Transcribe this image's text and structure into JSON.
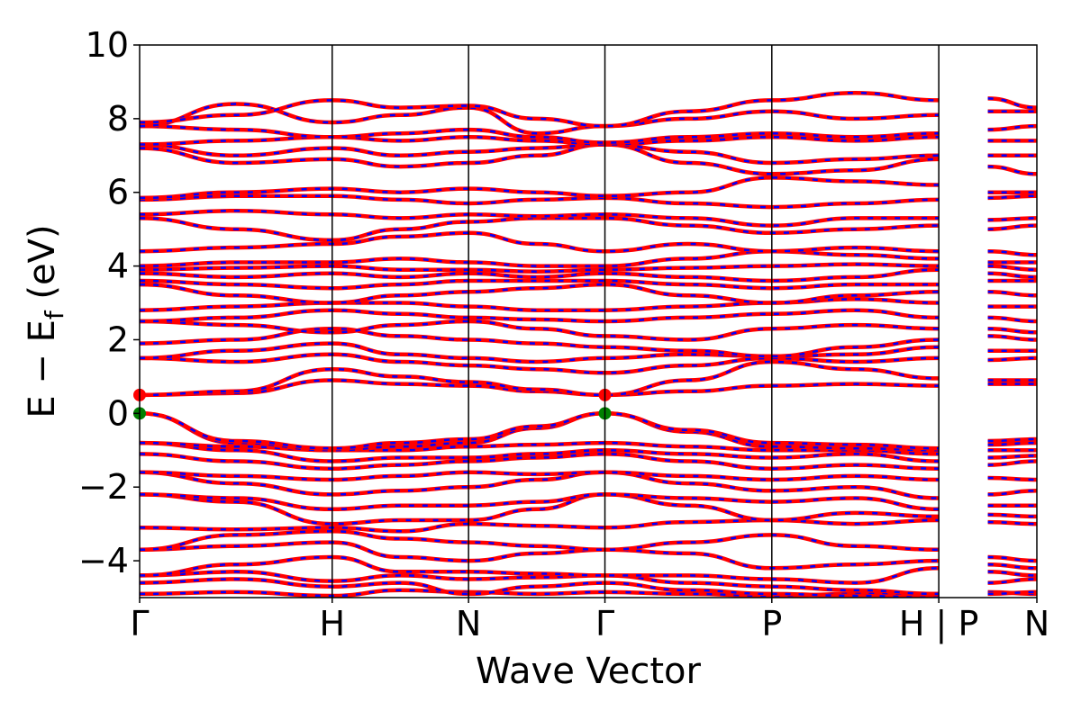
{
  "chart_data": {
    "type": "line",
    "title": "",
    "xlabel": "Wave Vector",
    "ylabel": {
      "main": "E − E",
      "sub": "f",
      "unit": " (eV)"
    },
    "ylim": [
      -5,
      10
    ],
    "yticks": [
      -4,
      -2,
      0,
      2,
      4,
      6,
      8,
      10
    ],
    "ytick_labels": [
      "−4",
      "−2",
      "0",
      "2",
      "4",
      "6",
      "8",
      "10"
    ],
    "xlim": [
      0,
      1
    ],
    "kpoints": [
      {
        "label": "Γ",
        "x": 0.0
      },
      {
        "label": "H",
        "x": 0.2146
      },
      {
        "label": "N",
        "x": 0.3666
      },
      {
        "label": "Γ",
        "x": 0.5186
      },
      {
        "label": "P",
        "x": 0.7046
      },
      {
        "label": "H | P",
        "x": 0.8907
      },
      {
        "label": "N",
        "x": 1.0
      }
    ],
    "segment_break_at": 0.8907,
    "grid": false,
    "series_style": {
      "spin_up_color": "#ff0000",
      "spin_down_color": "#0000ff",
      "marker_vbm_color": "#008000",
      "marker_cbm_color": "#ff0000"
    },
    "markers": [
      {
        "name": "VBM",
        "points": [
          [
            0.0,
            0.0
          ],
          [
            0.5186,
            0.0
          ]
        ]
      },
      {
        "name": "CBM",
        "points": [
          [
            0.0,
            0.5
          ],
          [
            0.5186,
            0.5
          ]
        ]
      }
    ],
    "bands_x": [
      0.0,
      0.1073,
      0.2146,
      0.2906,
      0.3666,
      0.4426,
      0.5186,
      0.6116,
      0.7046,
      0.7977,
      0.8907,
      0.9454,
      1.0
    ],
    "bands": [
      [
        -4.9,
        -4.85,
        -4.95,
        -4.8,
        -4.85,
        -4.9,
        -4.85,
        -4.9,
        -4.95,
        -4.9,
        -4.9,
        -4.85,
        -4.9
      ],
      [
        -4.6,
        -4.5,
        -4.7,
        -4.6,
        -4.9,
        -4.7,
        -4.6,
        -4.8,
        -4.9,
        -4.95,
        -5.0,
        -4.9,
        -4.85
      ],
      [
        -4.4,
        -4.3,
        -4.55,
        -4.4,
        -4.5,
        -4.45,
        -4.4,
        -4.6,
        -4.7,
        -4.8,
        -4.9,
        -4.6,
        -4.5
      ],
      [
        -4.4,
        -4.1,
        -3.9,
        -4.3,
        -4.3,
        -4.35,
        -4.4,
        -4.4,
        -4.5,
        -4.6,
        -4.2,
        -4.3,
        -4.4
      ],
      [
        -3.7,
        -3.6,
        -3.5,
        -3.9,
        -4.0,
        -3.8,
        -3.7,
        -3.8,
        -4.2,
        -4.1,
        -4.0,
        -4.1,
        -4.2
      ],
      [
        -3.7,
        -3.3,
        -3.2,
        -3.4,
        -3.5,
        -3.6,
        -3.7,
        -3.5,
        -3.3,
        -3.6,
        -3.7,
        -3.9,
        -4.0
      ],
      [
        -3.1,
        -3.15,
        -3.1,
        -3.2,
        -3.0,
        -3.05,
        -3.1,
        -2.95,
        -2.9,
        -3.0,
        -2.9,
        -2.95,
        -3.0
      ],
      [
        -2.2,
        -2.4,
        -3.0,
        -2.9,
        -2.9,
        -2.6,
        -2.2,
        -2.5,
        -2.9,
        -2.7,
        -2.8,
        -2.75,
        -2.8
      ],
      [
        -2.2,
        -2.3,
        -2.6,
        -2.5,
        -2.5,
        -2.4,
        -2.2,
        -2.3,
        -2.4,
        -2.3,
        -2.6,
        -2.5,
        -2.5
      ],
      [
        -1.6,
        -1.9,
        -2.2,
        -2.1,
        -2.0,
        -1.8,
        -1.6,
        -1.9,
        -2.1,
        -2.0,
        -2.3,
        -2.2,
        -2.1
      ],
      [
        -1.6,
        -1.7,
        -1.8,
        -1.7,
        -1.6,
        -1.65,
        -1.6,
        -1.7,
        -1.8,
        -1.7,
        -1.8,
        -1.75,
        -1.8
      ],
      [
        -1.1,
        -1.3,
        -1.5,
        -1.4,
        -1.3,
        -1.2,
        -1.1,
        -1.3,
        -1.5,
        -1.4,
        -1.5,
        -1.4,
        -1.3
      ],
      [
        -0.8,
        -1.0,
        -1.3,
        -1.2,
        -1.2,
        -1.1,
        -1.0,
        -1.1,
        -1.2,
        -1.1,
        -1.3,
        -1.2,
        -1.15
      ],
      [
        -0.8,
        -0.9,
        -1.0,
        -1.0,
        -0.9,
        -0.85,
        -0.8,
        -0.9,
        -1.0,
        -1.0,
        -1.1,
        -1.0,
        -1.0
      ],
      [
        0.0,
        -0.8,
        -1.0,
        -0.9,
        -0.8,
        -0.4,
        0.0,
        -0.5,
        -0.9,
        -0.95,
        -1.0,
        -0.85,
        -0.8
      ],
      [
        0.0,
        -0.75,
        -0.95,
        -0.8,
        -0.7,
        -0.35,
        0.0,
        -0.45,
        -0.8,
        -0.85,
        -0.95,
        -0.75,
        -0.7
      ],
      [
        0.5,
        0.55,
        0.9,
        0.8,
        0.75,
        0.6,
        0.5,
        0.6,
        0.75,
        0.8,
        0.75,
        0.8,
        0.8
      ],
      [
        0.5,
        0.6,
        1.2,
        1.0,
        0.85,
        0.65,
        0.5,
        0.9,
        1.4,
        1.2,
        0.95,
        0.9,
        0.9
      ],
      [
        1.5,
        1.4,
        1.6,
        1.4,
        1.3,
        1.2,
        1.1,
        1.3,
        1.5,
        1.4,
        1.5,
        1.45,
        1.5
      ],
      [
        1.5,
        1.7,
        1.9,
        1.6,
        1.5,
        1.4,
        1.5,
        1.6,
        1.55,
        1.6,
        1.8,
        1.7,
        1.7
      ],
      [
        1.9,
        2.0,
        2.3,
        2.1,
        2.0,
        1.9,
        1.8,
        1.7,
        1.55,
        1.8,
        2.0,
        2.1,
        2.0
      ],
      [
        2.5,
        2.4,
        2.2,
        2.4,
        2.5,
        2.3,
        2.1,
        2.0,
        2.3,
        2.4,
        2.3,
        2.3,
        2.2
      ],
      [
        2.5,
        2.6,
        2.8,
        2.7,
        2.6,
        2.55,
        2.5,
        2.6,
        2.7,
        2.8,
        2.6,
        2.6,
        2.5
      ],
      [
        2.8,
        2.9,
        3.0,
        3.0,
        2.9,
        2.8,
        2.8,
        2.9,
        3.0,
        3.1,
        3.0,
        2.9,
        2.9
      ],
      [
        3.5,
        3.2,
        3.0,
        3.2,
        3.3,
        3.4,
        3.5,
        3.2,
        3.0,
        3.2,
        3.3,
        3.3,
        3.2
      ],
      [
        3.6,
        3.5,
        3.4,
        3.5,
        3.6,
        3.6,
        3.6,
        3.5,
        3.4,
        3.5,
        3.5,
        3.6,
        3.6
      ],
      [
        3.8,
        3.7,
        3.8,
        3.7,
        3.8,
        3.7,
        3.8,
        3.7,
        3.6,
        3.7,
        3.9,
        3.8,
        3.7
      ],
      [
        3.9,
        3.95,
        4.0,
        3.9,
        3.9,
        3.85,
        3.9,
        3.95,
        4.0,
        4.05,
        4.0,
        4.0,
        3.9
      ],
      [
        4.0,
        4.1,
        4.1,
        4.2,
        4.1,
        4.0,
        4.0,
        4.2,
        4.4,
        4.3,
        4.2,
        4.1,
        4.1
      ],
      [
        4.4,
        4.5,
        4.6,
        4.8,
        4.9,
        4.6,
        4.4,
        4.6,
        4.4,
        4.5,
        4.4,
        4.4,
        4.3
      ],
      [
        5.3,
        5.0,
        4.7,
        5.0,
        5.2,
        5.3,
        5.3,
        5.1,
        4.9,
        5.0,
        5.1,
        5.0,
        5.1
      ],
      [
        5.4,
        5.5,
        5.4,
        5.3,
        5.4,
        5.35,
        5.4,
        5.3,
        5.1,
        5.3,
        5.3,
        5.25,
        5.3
      ],
      [
        5.8,
        5.9,
        5.9,
        5.8,
        5.7,
        5.8,
        5.85,
        5.7,
        5.6,
        5.7,
        5.8,
        5.85,
        5.9
      ],
      [
        5.85,
        6.0,
        6.1,
        6.0,
        6.1,
        6.0,
        5.9,
        6.0,
        6.4,
        6.3,
        6.2,
        6.0,
        6.0
      ],
      [
        7.2,
        6.8,
        6.9,
        6.7,
        6.8,
        7.0,
        7.3,
        6.8,
        6.5,
        6.6,
        6.9,
        6.7,
        6.5
      ],
      [
        7.3,
        7.0,
        7.2,
        7.0,
        7.1,
        7.2,
        7.3,
        7.1,
        6.8,
        6.9,
        7.0,
        7.0,
        7.0
      ],
      [
        7.3,
        7.4,
        7.5,
        7.4,
        7.5,
        7.4,
        7.3,
        7.4,
        7.5,
        7.4,
        7.5,
        7.4,
        7.4
      ],
      [
        7.8,
        7.7,
        7.5,
        7.6,
        7.7,
        7.5,
        7.35,
        7.5,
        7.6,
        7.5,
        7.6,
        7.7,
        7.8
      ],
      [
        7.8,
        8.4,
        7.9,
        8.1,
        8.3,
        7.6,
        7.8,
        8.0,
        8.2,
        8.0,
        8.1,
        8.2,
        8.2
      ],
      [
        7.9,
        8.1,
        8.5,
        8.3,
        8.35,
        8.0,
        7.8,
        8.2,
        8.5,
        8.7,
        8.5,
        8.55,
        8.3
      ]
    ]
  }
}
